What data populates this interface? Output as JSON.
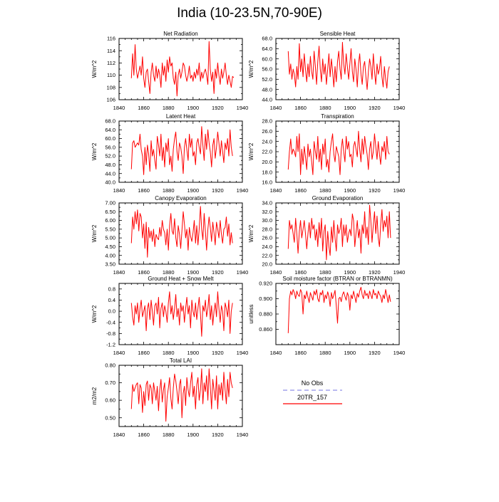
{
  "page_title": "India (10-23.5N,70-90E)",
  "colors": {
    "series": "#ff0000",
    "obs": "#8f8fe6",
    "axis": "#000000"
  },
  "legend": {
    "obs_label": "No Obs",
    "model_label": "20TR_157"
  },
  "chart_data": [
    {
      "type": "line",
      "title": "Net Radiation",
      "ylabel": "W/m^2",
      "xlim": [
        1840,
        1940
      ],
      "ylim": [
        106,
        116
      ],
      "xticks": [
        "1840",
        "1860",
        "1880",
        "1900",
        "1920",
        "1940"
      ],
      "yticks": [
        "106",
        "108",
        "110",
        "112",
        "114",
        "116"
      ],
      "x_start": 1850,
      "series": [
        {
          "values": [
            109.5,
            113.5,
            110.0,
            115.0,
            111.0,
            109.5,
            110.5,
            111.5,
            110.0,
            113.0,
            109.5,
            108.0,
            110.5,
            111.0,
            109.0,
            107.0,
            110.5,
            112.0,
            110.0,
            109.0,
            111.5,
            109.5,
            111.0,
            110.0,
            108.0,
            112.0,
            110.0,
            111.5,
            109.0,
            112.5,
            110.5,
            113.0,
            111.5,
            112.0,
            109.5,
            108.5,
            110.5,
            106.6,
            110.0,
            111.0,
            109.5,
            110.5,
            112.0,
            111.5,
            110.0,
            109.0,
            110.0,
            111.5,
            109.5,
            110.0,
            109.0,
            110.5,
            109.5,
            111.0,
            110.0,
            112.0,
            109.0,
            110.5,
            109.5,
            110.5,
            111.0,
            110.0,
            108.5,
            115.5,
            111.0,
            109.0,
            110.5,
            107.0,
            111.0,
            109.5,
            112.0,
            110.0,
            108.5,
            111.0,
            109.5,
            110.5,
            112.0,
            110.0,
            108.5,
            110.0,
            109.0,
            108.0,
            109.8,
            109.6
          ]
        }
      ]
    },
    {
      "type": "line",
      "title": "Sensible Heat",
      "ylabel": "W/m^2",
      "xlim": [
        1840,
        1940
      ],
      "ylim": [
        44,
        68
      ],
      "xticks": [
        "1840",
        "1860",
        "1880",
        "1900",
        "1920",
        "1940"
      ],
      "yticks": [
        "44.0",
        "48.0",
        "52.0",
        "56.0",
        "60.0",
        "64.0",
        "68.0"
      ],
      "x_start": 1850,
      "series": [
        {
          "values": [
            63.0,
            54.0,
            58.0,
            52.0,
            56.0,
            54.0,
            49.0,
            57.0,
            52.0,
            66.0,
            55.0,
            60.0,
            53.0,
            62.0,
            56.0,
            51.0,
            58.0,
            53.0,
            61.0,
            55.0,
            52.0,
            63.0,
            57.0,
            50.0,
            59.0,
            65.0,
            56.0,
            51.0,
            60.0,
            54.0,
            58.0,
            50.0,
            56.0,
            62.0,
            53.0,
            60.0,
            55.0,
            49.0,
            57.0,
            51.0,
            59.0,
            63.0,
            56.0,
            52.0,
            66.5,
            58.0,
            54.0,
            62.0,
            57.0,
            52.0,
            58.0,
            64.0,
            55.0,
            51.0,
            60.0,
            56.0,
            49.0,
            58.0,
            62.0,
            54.0,
            50.0,
            57.0,
            59.0,
            53.0,
            48.0,
            55.0,
            60.0,
            57.0,
            52.0,
            62.0,
            55.0,
            50.0,
            58.0,
            54.0,
            56.0,
            61.0,
            53.0,
            49.0,
            57.0,
            52.0,
            48.5,
            55.0,
            57.0
          ]
        }
      ]
    },
    {
      "type": "line",
      "title": "Latent Heat",
      "ylabel": "W/m^2",
      "xlim": [
        1840,
        1940
      ],
      "ylim": [
        40,
        68
      ],
      "xticks": [
        "1840",
        "1860",
        "1880",
        "1900",
        "1920",
        "1940"
      ],
      "yticks": [
        "40.0",
        "44.0",
        "48.0",
        "52.0",
        "56.0",
        "60.0",
        "64.0",
        "68.0"
      ],
      "x_start": 1850,
      "series": [
        {
          "values": [
            46.0,
            58.0,
            59.0,
            56.0,
            57.0,
            58.0,
            57.0,
            62.0,
            55.0,
            52.0,
            43.5,
            56.0,
            48.0,
            57.0,
            53.0,
            45.0,
            59.0,
            52.0,
            55.0,
            50.0,
            46.0,
            61.0,
            57.0,
            52.0,
            62.0,
            50.0,
            56.0,
            47.0,
            58.0,
            54.0,
            60.0,
            48.0,
            52.0,
            45.0,
            55.0,
            60.0,
            63.0,
            54.0,
            50.0,
            58.0,
            56.0,
            52.0,
            44.0,
            56.0,
            60.0,
            55.0,
            50.0,
            62.0,
            56.0,
            60.0,
            52.0,
            54.0,
            48.0,
            58.0,
            60.0,
            56.0,
            53.0,
            65.5,
            57.0,
            50.0,
            62.0,
            55.0,
            64.0,
            58.0,
            54.0,
            47.0,
            57.0,
            60.0,
            51.0,
            56.0,
            63.0,
            58.0,
            52.0,
            59.0,
            54.0,
            49.0,
            58.0,
            55.0,
            60.0,
            52.0,
            64.0,
            56.0,
            52.0
          ]
        }
      ]
    },
    {
      "type": "line",
      "title": "Transpiration",
      "ylabel": "W/m^2",
      "xlim": [
        1840,
        1940
      ],
      "ylim": [
        16,
        28
      ],
      "xticks": [
        "1840",
        "1860",
        "1880",
        "1900",
        "1920",
        "1940"
      ],
      "yticks": [
        "16.0",
        "18.0",
        "20.0",
        "22.0",
        "24.0",
        "26.0",
        "28.0"
      ],
      "x_start": 1850,
      "series": [
        {
          "values": [
            18.5,
            22.0,
            24.5,
            21.5,
            22.5,
            22.0,
            21.0,
            25.0,
            22.0,
            25.5,
            17.5,
            22.5,
            19.5,
            23.0,
            21.0,
            18.5,
            23.5,
            21.0,
            22.5,
            20.0,
            17.5,
            24.0,
            22.0,
            20.5,
            25.0,
            20.0,
            22.5,
            18.5,
            23.5,
            21.5,
            24.5,
            19.0,
            20.5,
            18.0,
            22.0,
            24.0,
            25.5,
            21.5,
            20.0,
            23.0,
            22.0,
            21.0,
            17.5,
            22.5,
            24.5,
            22.0,
            20.0,
            25.0,
            22.5,
            24.0,
            21.0,
            21.5,
            19.0,
            23.0,
            24.0,
            22.5,
            21.0,
            26.0,
            22.5,
            20.0,
            24.5,
            21.5,
            25.0,
            23.0,
            21.5,
            18.5,
            22.5,
            24.0,
            20.5,
            22.0,
            25.5,
            23.0,
            20.5,
            24.0,
            21.5,
            19.5,
            23.0,
            22.0,
            24.0,
            20.5,
            25.0,
            22.0,
            21.5
          ]
        }
      ]
    },
    {
      "type": "line",
      "title": "Canopy Evaporation",
      "ylabel": "W/m^2",
      "xlim": [
        1840,
        1940
      ],
      "ylim": [
        3.5,
        7.0
      ],
      "xticks": [
        "1840",
        "1860",
        "1880",
        "1900",
        "1920",
        "1940"
      ],
      "yticks": [
        "3.50",
        "4.00",
        "4.50",
        "5.00",
        "5.50",
        "6.00",
        "6.50",
        "7.00"
      ],
      "x_start": 1850,
      "series": [
        {
          "values": [
            4.7,
            6.2,
            5.5,
            6.5,
            5.8,
            6.6,
            5.4,
            6.4,
            6.2,
            5.0,
            5.8,
            4.4,
            5.9,
            3.9,
            5.6,
            5.0,
            5.4,
            4.8,
            5.5,
            4.5,
            5.2,
            5.0,
            4.9,
            5.6,
            5.1,
            6.0,
            5.5,
            5.3,
            4.6,
            5.5,
            4.3,
            5.7,
            6.4,
            5.4,
            5.2,
            6.1,
            5.0,
            4.5,
            5.7,
            5.2,
            4.4,
            5.4,
            6.5,
            5.8,
            5.0,
            5.5,
            4.3,
            5.6,
            5.1,
            4.8,
            5.3,
            6.0,
            4.7,
            5.7,
            4.6,
            5.5,
            6.8,
            5.5,
            4.9,
            6.4,
            5.4,
            4.3,
            5.5,
            6.2,
            5.6,
            4.8,
            5.9,
            5.3,
            4.6,
            5.9,
            5.5,
            5.0,
            6.0,
            5.2,
            4.7,
            5.5,
            5.6,
            6.2,
            5.1,
            5.8,
            4.6,
            5.3,
            4.7
          ]
        }
      ]
    },
    {
      "type": "line",
      "title": "Ground Evaporation",
      "ylabel": "W/m^2",
      "xlim": [
        1840,
        1940
      ],
      "ylim": [
        20,
        34
      ],
      "xticks": [
        "1840",
        "1860",
        "1880",
        "1900",
        "1920",
        "1940"
      ],
      "yticks": [
        "20.0",
        "22.0",
        "24.0",
        "26.0",
        "28.0",
        "30.0",
        "32.0",
        "34.0"
      ],
      "x_start": 1850,
      "series": [
        {
          "values": [
            23.5,
            30.0,
            28.0,
            29.0,
            27.0,
            25.0,
            30.5,
            27.0,
            22.5,
            27.5,
            30.0,
            26.0,
            28.0,
            30.0,
            27.0,
            23.5,
            27.0,
            29.5,
            26.0,
            30.5,
            28.0,
            29.0,
            25.5,
            28.0,
            24.0,
            29.5,
            26.0,
            30.5,
            23.0,
            27.5,
            29.0,
            21.0,
            27.5,
            24.0,
            22.0,
            28.5,
            25.0,
            30.0,
            26.0,
            23.0,
            29.0,
            27.0,
            28.0,
            30.5,
            24.0,
            29.0,
            26.5,
            29.0,
            25.0,
            27.0,
            28.0,
            26.5,
            31.5,
            30.0,
            24.0,
            27.0,
            30.0,
            26.0,
            28.0,
            22.5,
            29.0,
            27.0,
            32.0,
            26.0,
            28.5,
            24.5,
            33.5,
            30.0,
            25.0,
            29.0,
            32.0,
            27.0,
            31.0,
            26.0,
            24.0,
            29.0,
            32.5,
            27.5,
            30.0,
            28.5,
            31.0,
            26.0,
            32.0,
            26.0
          ]
        }
      ]
    },
    {
      "type": "line",
      "title": "Ground Heat + Snow Melt",
      "ylabel": "W/m^2",
      "xlim": [
        1840,
        1940
      ],
      "ylim": [
        -1.2,
        1.0
      ],
      "xticks": [
        "1840",
        "1860",
        "1880",
        "1900",
        "1920",
        "1940"
      ],
      "yticks": [
        "-1.2",
        "-0.8",
        "-0.4",
        "0.0",
        "0.4",
        "0.8"
      ],
      "x_start": 1850,
      "series": [
        {
          "values": [
            0.3,
            -0.2,
            -0.5,
            0.2,
            -0.1,
            0.3,
            -0.4,
            0.1,
            0.4,
            -0.2,
            0.0,
            0.2,
            -0.7,
            0.1,
            0.3,
            -0.3,
            0.4,
            0.0,
            -0.5,
            0.2,
            0.3,
            -0.1,
            0.5,
            -0.6,
            0.1,
            0.3,
            -0.2,
            0.2,
            0.0,
            -0.4,
            0.3,
            0.7,
            -0.1,
            0.2,
            -0.3,
            0.1,
            0.6,
            -0.2,
            0.1,
            -0.5,
            0.3,
            0.0,
            0.2,
            -0.4,
            0.1,
            0.5,
            -0.1,
            0.2,
            -0.6,
            0.4,
            0.0,
            -0.2,
            0.3,
            -0.3,
            0.1,
            0.5,
            -0.1,
            -0.9,
            0.2,
            0.0,
            0.4,
            -0.2,
            0.1,
            0.6,
            -0.3,
            0.2,
            -0.5,
            0.0,
            0.3,
            -0.2,
            0.7,
            0.1,
            -0.4,
            0.2,
            0.0,
            -0.7,
            0.3,
            0.1,
            -0.2,
            0.4,
            -0.8,
            0.0,
            0.3
          ]
        }
      ]
    },
    {
      "type": "line",
      "title": "Soil moisture factor (BTRAN or BTRANMN)",
      "ylabel": "unitless",
      "xlim": [
        1840,
        1940
      ],
      "ylim": [
        0.84,
        0.92
      ],
      "xticks": [
        "1840",
        "1860",
        "1880",
        "1900",
        "1920",
        "1940"
      ],
      "yticks": [
        "0.860",
        "0.880",
        "0.900",
        "0.920"
      ],
      "x_start": 1850,
      "series": [
        {
          "values": [
            0.855,
            0.9,
            0.91,
            0.905,
            0.912,
            0.908,
            0.9,
            0.91,
            0.905,
            0.903,
            0.912,
            0.908,
            0.88,
            0.905,
            0.9,
            0.91,
            0.902,
            0.895,
            0.908,
            0.903,
            0.898,
            0.91,
            0.905,
            0.912,
            0.9,
            0.896,
            0.908,
            0.905,
            0.911,
            0.895,
            0.905,
            0.9,
            0.909,
            0.903,
            0.89,
            0.908,
            0.9,
            0.905,
            0.911,
            0.89,
            0.868,
            0.9,
            0.902,
            0.896,
            0.905,
            0.909,
            0.903,
            0.898,
            0.908,
            0.903,
            0.885,
            0.905,
            0.9,
            0.91,
            0.903,
            0.895,
            0.907,
            0.902,
            0.91,
            0.915,
            0.905,
            0.9,
            0.911,
            0.904,
            0.907,
            0.9,
            0.91,
            0.905,
            0.9,
            0.912,
            0.905,
            0.907,
            0.9,
            0.91,
            0.906,
            0.903,
            0.895,
            0.905,
            0.9,
            0.912,
            0.904,
            0.895,
            0.905,
            0.896
          ]
        }
      ]
    },
    {
      "type": "line",
      "title": "Total LAI",
      "ylabel": "m2/m2",
      "xlim": [
        1840,
        1940
      ],
      "ylim": [
        0.45,
        0.8
      ],
      "xticks": [
        "1840",
        "1860",
        "1880",
        "1900",
        "1920",
        "1940"
      ],
      "yticks": [
        "0.50",
        "0.60",
        "0.70",
        "0.80"
      ],
      "x_start": 1850,
      "series": [
        {
          "values": [
            0.55,
            0.69,
            0.65,
            0.67,
            0.69,
            0.7,
            0.58,
            0.69,
            0.67,
            0.53,
            0.65,
            0.57,
            0.69,
            0.71,
            0.6,
            0.69,
            0.67,
            0.58,
            0.7,
            0.65,
            0.6,
            0.68,
            0.54,
            0.66,
            0.72,
            0.59,
            0.66,
            0.7,
            0.48,
            0.62,
            0.67,
            0.73,
            0.61,
            0.55,
            0.67,
            0.75,
            0.71,
            0.65,
            0.58,
            0.69,
            0.72,
            0.5,
            0.64,
            0.68,
            0.57,
            0.73,
            0.66,
            0.62,
            0.7,
            0.76,
            0.62,
            0.68,
            0.55,
            0.69,
            0.73,
            0.6,
            0.66,
            0.78,
            0.58,
            0.7,
            0.65,
            0.74,
            0.6,
            0.78,
            0.68,
            0.55,
            0.72,
            0.66,
            0.6,
            0.74,
            0.55,
            0.69,
            0.63,
            0.7,
            0.6,
            0.76,
            0.66,
            0.58,
            0.72,
            0.62,
            0.76,
            0.7,
            0.67
          ]
        }
      ]
    }
  ]
}
